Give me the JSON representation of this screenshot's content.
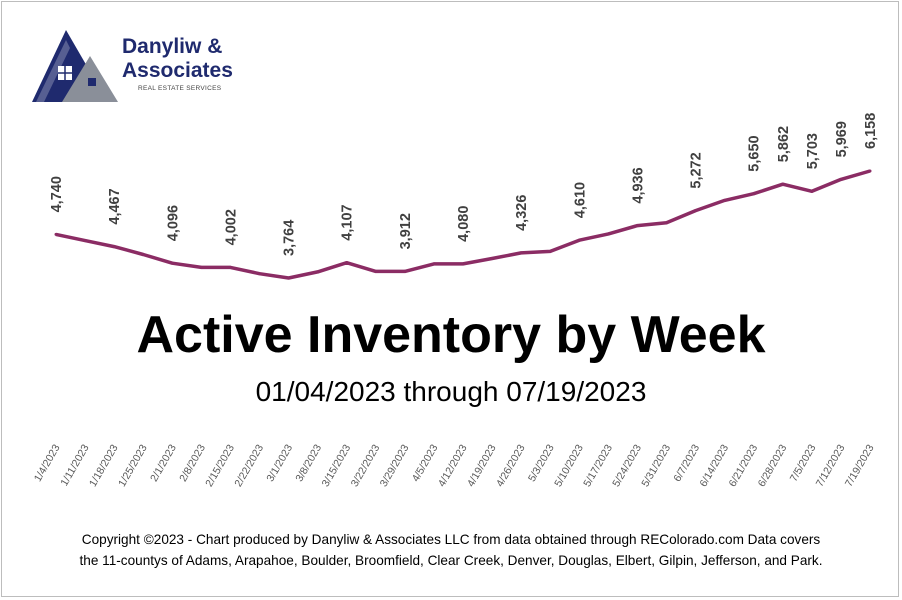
{
  "branding": {
    "name_line1": "Danyliw &",
    "name_line2": "Associates",
    "tagline": "REAL ESTATE SERVICES",
    "colors": {
      "navy": "#1f2a6e",
      "gray": "#8a8f99"
    },
    "icon": "house-logo-icon"
  },
  "chart_data": {
    "type": "line",
    "title": "Active Inventory by Week",
    "subtitle": "01/04/2023 through 07/19/2023",
    "line_color": "#8b2c64",
    "grid": false,
    "categories": [
      "1/4/2023",
      "1/11/2023",
      "1/18/2023",
      "1/25/2023",
      "2/1/2023",
      "2/8/2023",
      "2/15/2023",
      "2/22/2023",
      "3/1/2023",
      "3/8/2023",
      "3/15/2023",
      "3/22/2023",
      "3/29/2023",
      "4/5/2023",
      "4/12/2023",
      "4/19/2023",
      "4/26/2023",
      "5/3/2023",
      "5/10/2023",
      "5/17/2023",
      "5/24/2023",
      "5/31/2023",
      "6/7/2023",
      "6/14/2023",
      "6/21/2023",
      "6/28/2023",
      "7/5/2023",
      "7/12/2023",
      "7/19/2023"
    ],
    "values": [
      4740,
      4600,
      4467,
      4290,
      4096,
      4002,
      4002,
      3860,
      3764,
      3900,
      4107,
      3912,
      3912,
      4080,
      4080,
      4200,
      4326,
      4360,
      4610,
      4750,
      4936,
      5000,
      5272,
      5500,
      5650,
      5862,
      5703,
      5969,
      6158
    ],
    "data_labels": [
      {
        "index": 0,
        "text": "4,740"
      },
      {
        "index": 2,
        "text": "4,467"
      },
      {
        "index": 4,
        "text": "4,096"
      },
      {
        "index": 6,
        "text": "4,002"
      },
      {
        "index": 8,
        "text": "3,764"
      },
      {
        "index": 10,
        "text": "4,107"
      },
      {
        "index": 12,
        "text": "3,912"
      },
      {
        "index": 14,
        "text": "4,080"
      },
      {
        "index": 16,
        "text": "4,326"
      },
      {
        "index": 18,
        "text": "4,610"
      },
      {
        "index": 20,
        "text": "4,936"
      },
      {
        "index": 22,
        "text": "5,272"
      },
      {
        "index": 24,
        "text": "5,650"
      },
      {
        "index": 25,
        "text": "5,862"
      },
      {
        "index": 26,
        "text": "5,703"
      },
      {
        "index": 27,
        "text": "5,969"
      },
      {
        "index": 28,
        "text": "6,158"
      }
    ]
  },
  "footer": {
    "line1": "Copyright ©2023 - Chart produced by Danyliw & Associates LLC from data obtained through REColorado.com Data covers",
    "line2": "the 11-countys of Adams, Arapahoe, Boulder, Broomfield, Clear Creek, Denver, Douglas, Elbert, Gilpin, Jefferson, and Park."
  }
}
